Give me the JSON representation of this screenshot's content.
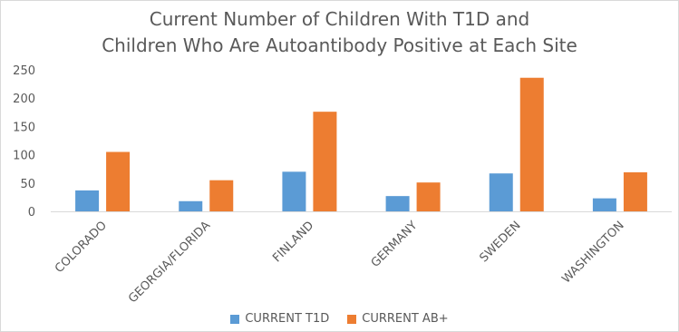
{
  "chart_data": {
    "type": "bar",
    "title": [
      "Current Number of Children With T1D and",
      "Children Who Are Autoantibody Positive at Each Site"
    ],
    "categories": [
      "COLORADO",
      "GEORGIA/FLORIDA",
      "FINLAND",
      "GERMANY",
      "SWEDEN",
      "WASHINGTON"
    ],
    "series": [
      {
        "name": "CURRENT T1D",
        "color": "#5b9bd5",
        "values": [
          37,
          18,
          70,
          27,
          67,
          23
        ]
      },
      {
        "name": "CURRENT AB+",
        "color": "#ed7d31",
        "values": [
          105,
          55,
          176,
          51,
          236,
          69
        ]
      }
    ],
    "ylim": [
      0,
      250
    ],
    "yticks": [
      0,
      50,
      100,
      150,
      200,
      250
    ],
    "xlabel": "",
    "ylabel": "",
    "grid": false,
    "legend": "bottom"
  }
}
